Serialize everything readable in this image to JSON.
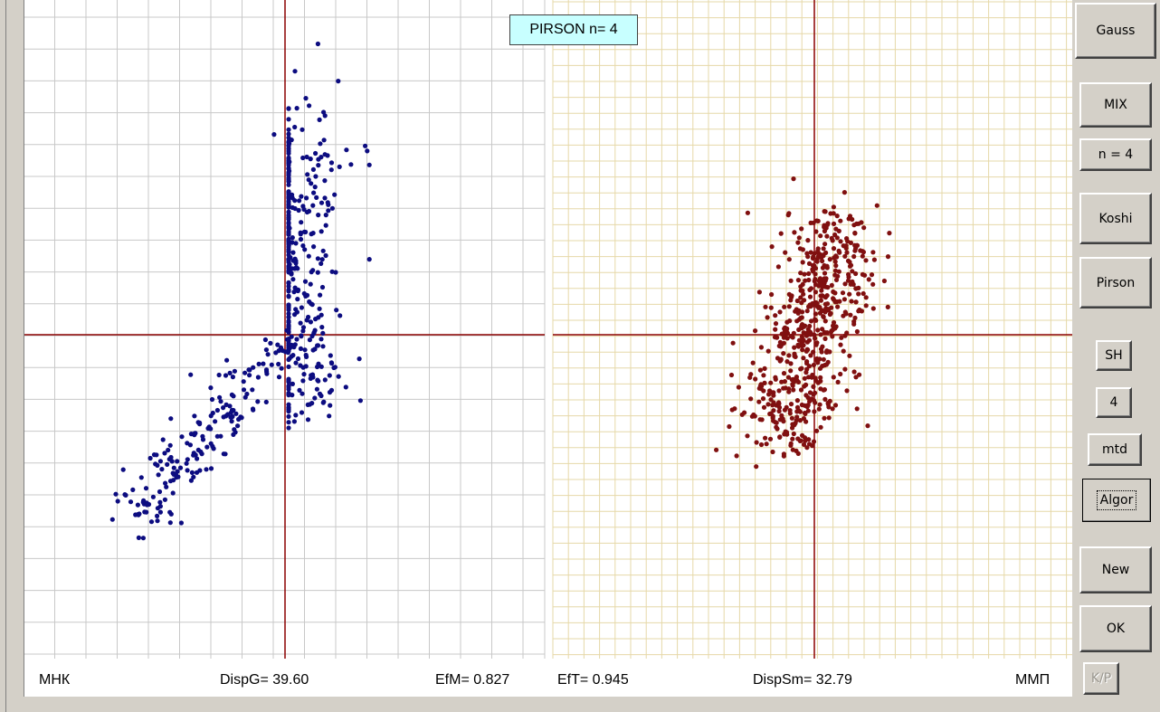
{
  "title_box": "PIRSON n= 4",
  "status": {
    "left_method": "МНК",
    "disp_g": "DispG= 39.60",
    "ef_m": "EfM= 0.827",
    "ef_t": "EfT= 0.945",
    "disp_sm": "DispSm= 32.79",
    "right_method": "ММП"
  },
  "buttons": {
    "gauss": "Gauss",
    "mix": "MIX",
    "n4": "n = 4",
    "koshi": "Koshi",
    "pirson": "Pirson",
    "sh": "SH",
    "four": "4",
    "mtd": "mtd",
    "algor": "Algor",
    "new": "New",
    "ok": "OK",
    "kp": "K/P"
  },
  "colors": {
    "left_points": "#0c0c80",
    "right_points": "#801010",
    "crosshair": "#8b0000",
    "left_grid": "#c8c8c8",
    "right_grid": "#e6d8a8",
    "title_bg": "#c8ffff"
  }
}
